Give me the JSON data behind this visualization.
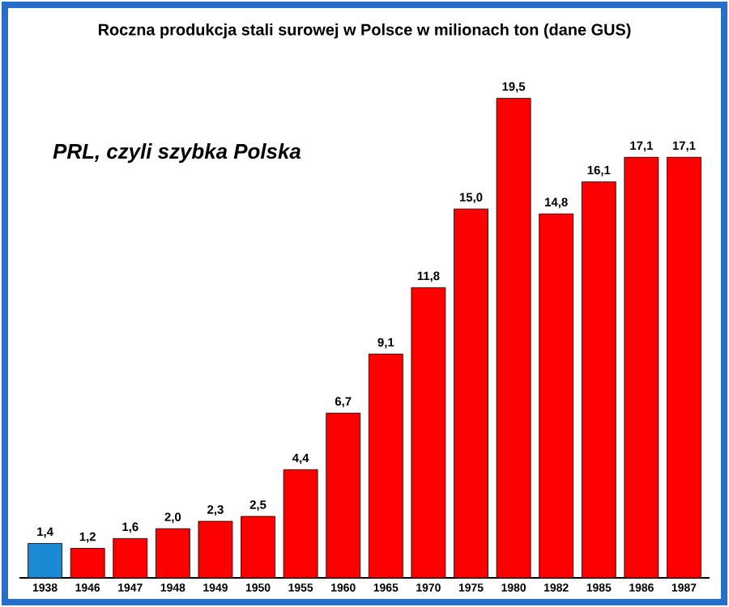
{
  "chart_data": {
    "type": "bar",
    "title": "Roczna produkcja stali surowej w Polsce w milionach ton (dane GUS)",
    "annotations": [
      "PRL, czyli szybka Polska"
    ],
    "categories": [
      "1938",
      "1946",
      "1947",
      "1948",
      "1949",
      "1950",
      "1955",
      "1960",
      "1965",
      "1970",
      "1975",
      "1980",
      "1982",
      "1985",
      "1986",
      "1987"
    ],
    "values": [
      1.4,
      1.2,
      1.6,
      2.0,
      2.3,
      2.5,
      4.4,
      6.7,
      9.1,
      11.8,
      15.0,
      19.5,
      14.8,
      16.1,
      17.1,
      17.1
    ],
    "value_labels": [
      "1,4",
      "1,2",
      "1,6",
      "2,0",
      "2,3",
      "2,5",
      "4,4",
      "6,7",
      "9,1",
      "11,8",
      "15,0",
      "19,5",
      "14,8",
      "16,1",
      "17,1",
      "17,1"
    ],
    "colors": [
      "#1a8ad4",
      "#ff0000",
      "#ff0000",
      "#ff0000",
      "#ff0000",
      "#ff0000",
      "#ff0000",
      "#ff0000",
      "#ff0000",
      "#ff0000",
      "#ff0000",
      "#ff0000",
      "#ff0000",
      "#ff0000",
      "#ff0000",
      "#ff0000"
    ]
  }
}
